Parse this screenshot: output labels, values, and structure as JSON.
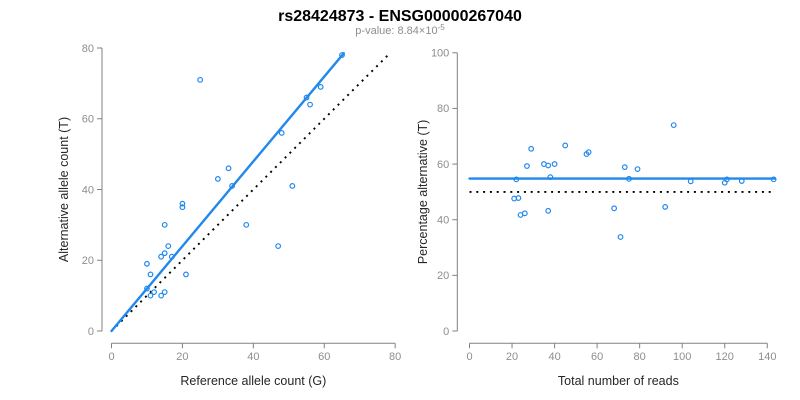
{
  "header": {
    "title": "rs28424873 - ENSG00000267040",
    "subtitle_prefix": "p-value: 8.84×10",
    "subtitle_exponent": "-5"
  },
  "colors": {
    "accent_blue": "#2188ED",
    "null_line_black": "#000000",
    "axis_gray": "#818181",
    "tick_label_gray": "#8e8e8e",
    "axis_title_color": "#262626",
    "subtitle_gray": "#8e8e8e",
    "background": "#ffffff"
  },
  "chart_data": [
    {
      "id": "allele-count-scatter",
      "type": "scatter",
      "xlabel": "Reference allele count (G)",
      "ylabel": "Alternative allele count (T)",
      "xlim": [
        0,
        80
      ],
      "ylim": [
        0,
        80
      ],
      "xticks": [
        0,
        20,
        40,
        60,
        80
      ],
      "yticks": [
        0,
        20,
        40,
        60,
        80
      ],
      "grid": false,
      "points": [
        [
          11,
          10
        ],
        [
          12,
          11
        ],
        [
          14,
          10
        ],
        [
          15,
          11
        ],
        [
          10,
          12
        ],
        [
          11,
          16
        ],
        [
          10,
          19
        ],
        [
          14,
          21
        ],
        [
          15,
          22
        ],
        [
          17,
          21
        ],
        [
          16,
          24
        ],
        [
          21,
          16
        ],
        [
          15,
          30
        ],
        [
          20,
          35
        ],
        [
          20,
          36
        ],
        [
          25,
          71
        ],
        [
          30,
          43
        ],
        [
          33,
          46
        ],
        [
          34,
          41
        ],
        [
          38,
          30
        ],
        [
          47,
          24
        ],
        [
          48,
          56
        ],
        [
          51,
          41
        ],
        [
          55,
          66
        ],
        [
          56,
          64
        ],
        [
          59,
          69
        ],
        [
          65,
          78
        ]
      ],
      "fit_line": {
        "x1": 0,
        "y1": 0,
        "x2": 65.5,
        "y2": 78.5,
        "style": "solid"
      },
      "reference_line": {
        "x1": 0,
        "y1": 0,
        "x2": 78,
        "y2": 78,
        "style": "dotted"
      }
    },
    {
      "id": "percentage-alternative-scatter",
      "type": "scatter",
      "xlabel": "Total number of reads",
      "ylabel": "Percentage alternative (T)",
      "xlim": [
        0,
        143.6
      ],
      "ylim": [
        0,
        100
      ],
      "xticks": [
        0,
        20,
        40,
        60,
        80,
        100,
        120,
        140
      ],
      "yticks": [
        0,
        20,
        40,
        60,
        80,
        100
      ],
      "grid": false,
      "points": [
        [
          21,
          47.6
        ],
        [
          23,
          47.8
        ],
        [
          24,
          41.7
        ],
        [
          26,
          42.3
        ],
        [
          22,
          54.5
        ],
        [
          27,
          59.3
        ],
        [
          29,
          65.5
        ],
        [
          35,
          60
        ],
        [
          37,
          59.5
        ],
        [
          38,
          55.3
        ],
        [
          40,
          60
        ],
        [
          37,
          43.2
        ],
        [
          45,
          66.7
        ],
        [
          55,
          63.6
        ],
        [
          56,
          64.3
        ],
        [
          68,
          44.1
        ],
        [
          71,
          33.8
        ],
        [
          73,
          58.9
        ],
        [
          75,
          54.7
        ],
        [
          79,
          58.2
        ],
        [
          92,
          44.6
        ],
        [
          96,
          74
        ],
        [
          104,
          53.8
        ],
        [
          120,
          53.3
        ],
        [
          121,
          54.5
        ],
        [
          128,
          53.9
        ],
        [
          143,
          54.5
        ]
      ],
      "fit_line": {
        "x1": 0,
        "y1": 54.8,
        "x2": 143.6,
        "y2": 54.8,
        "style": "solid"
      },
      "reference_line": {
        "x1": 0,
        "y1": 50,
        "x2": 143.6,
        "y2": 50,
        "style": "dotted"
      }
    }
  ]
}
